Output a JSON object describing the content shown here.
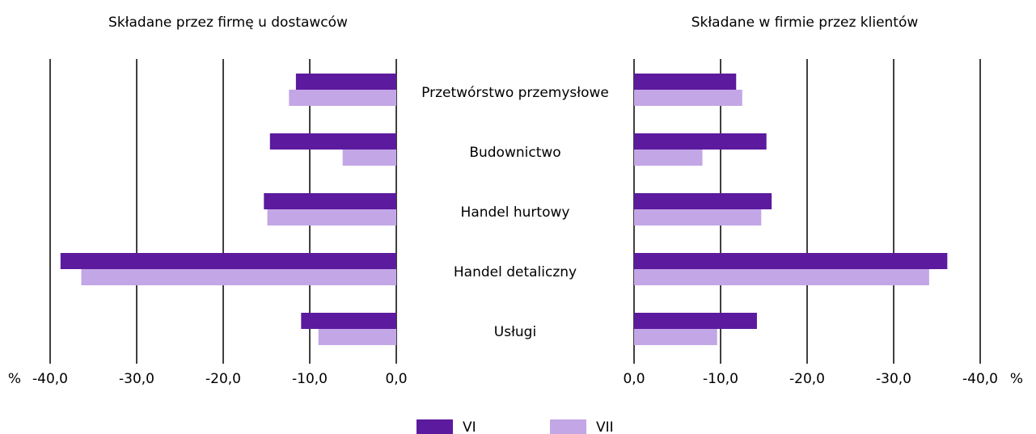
{
  "chart_data": [
    {
      "type": "bar",
      "orientation": "horizontal",
      "title": "Składane przez firmę u dostawców",
      "unit": "%",
      "categories": [
        "Przetwórstwo przemysłowe",
        "Budownictwo",
        "Handel hurtowy",
        "Handel detaliczny",
        "Usługi"
      ],
      "series": [
        {
          "name": "VI",
          "color": "#5c1a9e",
          "values": [
            -11.6,
            -14.6,
            -15.3,
            -38.8,
            -11.0
          ]
        },
        {
          "name": "VII",
          "color": "#c3a6e6",
          "values": [
            -12.4,
            -6.2,
            -14.9,
            -36.4,
            -9.0
          ]
        }
      ],
      "xlim": [
        -40,
        0
      ],
      "xticks": [
        {
          "value": -40,
          "label": "-40,0"
        },
        {
          "value": -30,
          "label": "-30,0"
        },
        {
          "value": -20,
          "label": "-20,0"
        },
        {
          "value": -10,
          "label": "-10,0"
        },
        {
          "value": 0,
          "label": "0,0"
        }
      ],
      "grid": true
    },
    {
      "type": "bar",
      "orientation": "horizontal",
      "title": "Składane w firmie przez klientów",
      "unit": "%",
      "series": [
        {
          "color": "#5c1a9e",
          "values": [
            -11.8,
            -15.3,
            -15.9,
            -36.2,
            -14.2
          ]
        },
        {
          "color": "#c3a6e6",
          "values": [
            -12.5,
            -7.9,
            -14.7,
            -34.1,
            -9.6
          ]
        }
      ],
      "xlim": [
        0,
        -40
      ],
      "xticks": [
        {
          "value": 0,
          "label": "0,0"
        },
        {
          "value": -10,
          "label": "-10,0"
        },
        {
          "value": -20,
          "label": "-20,0"
        },
        {
          "value": -30,
          "label": "-30,0"
        },
        {
          "value": -40,
          "label": "-40,0"
        }
      ],
      "grid": true
    }
  ]
}
